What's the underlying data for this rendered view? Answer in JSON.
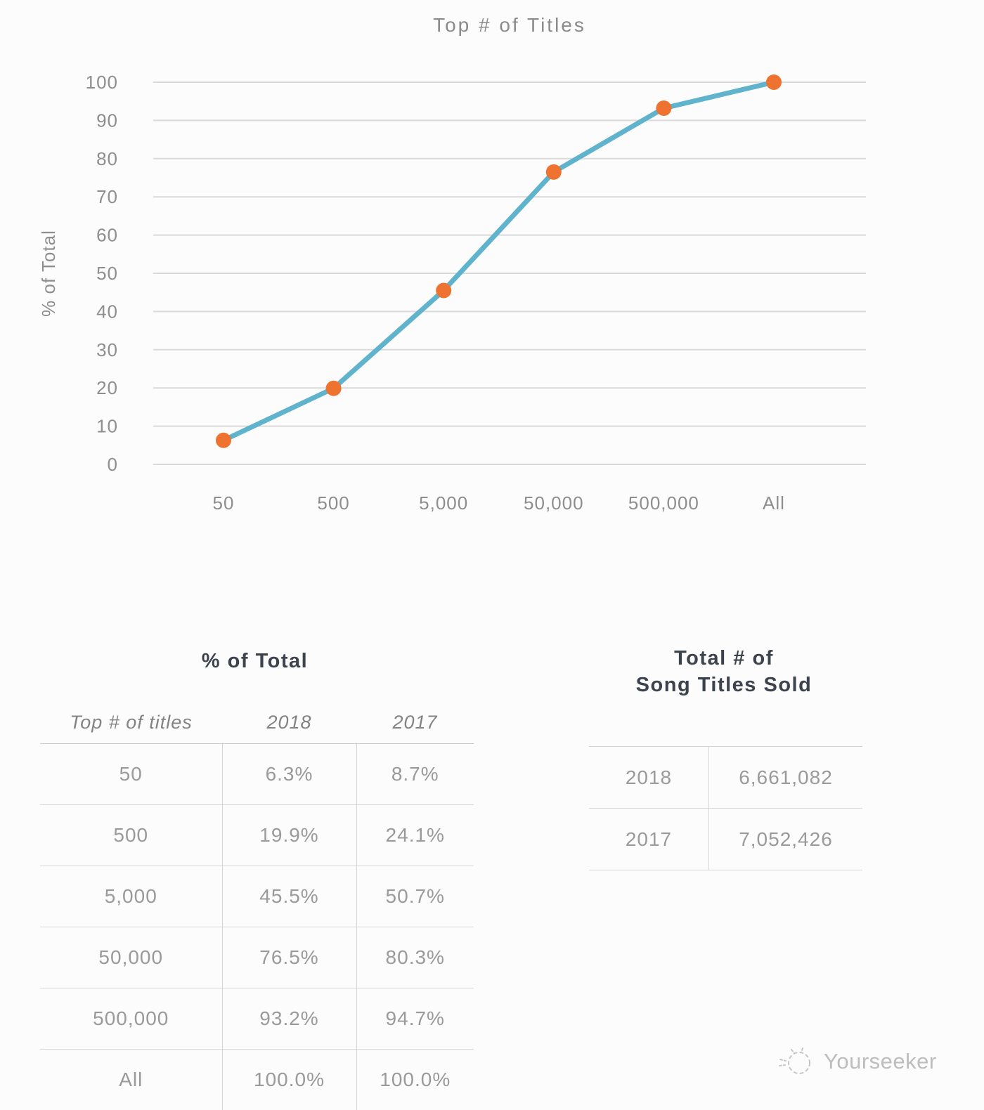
{
  "chart_data": {
    "type": "line",
    "title": "Top # of Titles",
    "ylabel": "% of Total",
    "xlabel": "",
    "categories": [
      "50",
      "500",
      "5,000",
      "50,000",
      "500,000",
      "All"
    ],
    "series": [
      {
        "name": "% of Total",
        "values": [
          6.3,
          19.9,
          45.5,
          76.5,
          93.2,
          100.0
        ]
      }
    ],
    "ylim": [
      0,
      100
    ],
    "yticks": [
      0,
      10,
      20,
      30,
      40,
      50,
      60,
      70,
      80,
      90,
      100
    ],
    "grid": true,
    "legend_position": "none",
    "line_color": "#5fb3cd",
    "marker_color": "#ee7230",
    "grid_color": "#dadada",
    "axis_text_color": "#8e8e8e"
  },
  "tables": {
    "percent_of_total": {
      "title": "% of Total",
      "columns": [
        "Top # of titles",
        "2018",
        "2017"
      ],
      "rows": [
        [
          "50",
          "6.3%",
          "8.7%"
        ],
        [
          "500",
          "19.9%",
          "24.1%"
        ],
        [
          "5,000",
          "45.5%",
          "50.7%"
        ],
        [
          "50,000",
          "76.5%",
          "80.3%"
        ],
        [
          "500,000",
          "93.2%",
          "94.7%"
        ],
        [
          "All",
          "100.0%",
          "100.0%"
        ]
      ]
    },
    "titles_sold": {
      "title_line1": "Total # of",
      "title_line2": "Song Titles Sold",
      "rows": [
        [
          "2018",
          "6,661,082"
        ],
        [
          "2017",
          "7,052,426"
        ]
      ]
    }
  },
  "watermark": {
    "label": "Yourseeker"
  },
  "colors": {
    "heading_text": "#3d434d",
    "table_text": "#9a9a9a",
    "border": "#d6d6d6",
    "watermark_text": "#bdbdbd",
    "background": "#fcfcfc"
  }
}
